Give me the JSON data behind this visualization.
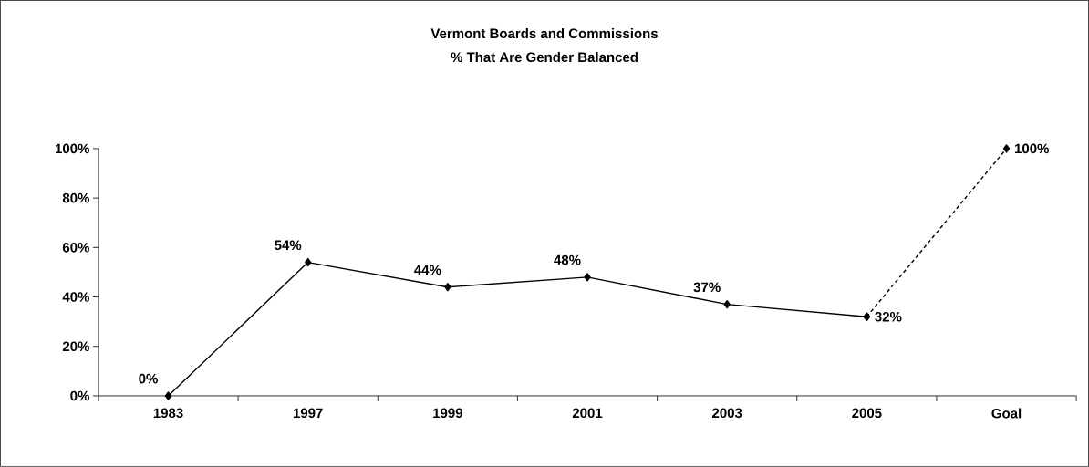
{
  "chart_data": {
    "type": "line",
    "title": "Vermont Boards and Commissions",
    "subtitle": "% That Are Gender Balanced",
    "categories": [
      "1983",
      "1997",
      "1999",
      "2001",
      "2003",
      "2005",
      "Goal"
    ],
    "series": [
      {
        "color": "#000000",
        "line_style": "solid",
        "values": [
          0,
          54,
          44,
          48,
          37,
          32,
          null
        ],
        "value_labels": [
          "0%",
          "54%",
          "44%",
          "48%",
          "37%",
          "32%",
          null
        ]
      },
      {
        "color": "#000000",
        "line_style": "dashed",
        "values": [
          null,
          null,
          null,
          null,
          null,
          32,
          100
        ],
        "value_labels": [
          null,
          null,
          null,
          null,
          null,
          null,
          "100%"
        ]
      }
    ],
    "ylim": [
      0,
      100
    ],
    "yticks": [
      {
        "value": 0,
        "label": "0%"
      },
      {
        "value": 20,
        "label": "20%"
      },
      {
        "value": 40,
        "label": "40%"
      },
      {
        "value": 60,
        "label": "60%"
      },
      {
        "value": 80,
        "label": "80%"
      },
      {
        "value": 100,
        "label": "100%"
      }
    ],
    "marker": "diamond",
    "grid": false
  }
}
